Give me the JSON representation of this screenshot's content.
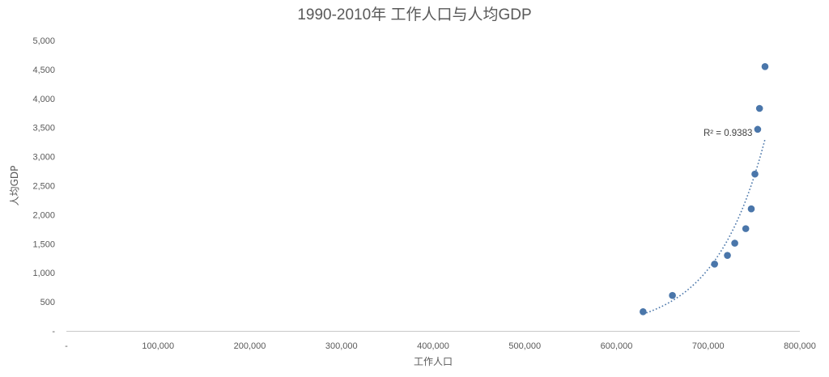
{
  "chart_data": {
    "type": "scatter",
    "title": "1990-2010年 工作人口与人均GDP",
    "xlabel": "工作人口",
    "ylabel": "人均GDP",
    "xlim": [
      0,
      800000
    ],
    "ylim": [
      0,
      5000
    ],
    "x_ticks": [
      0,
      100000,
      200000,
      300000,
      400000,
      500000,
      600000,
      700000,
      800000
    ],
    "x_tick_labels": [
      "-",
      "100,000",
      "200,000",
      "300,000",
      "400,000",
      "500,000",
      "600,000",
      "700,000",
      "800,000"
    ],
    "y_ticks": [
      0,
      500,
      1000,
      1500,
      2000,
      2500,
      3000,
      3500,
      4000,
      4500,
      5000
    ],
    "y_tick_labels": [
      "-",
      "500",
      "1,000",
      "1,500",
      "2,000",
      "2,500",
      "3,000",
      "3,500",
      "4,000",
      "4,500",
      "5,000"
    ],
    "grid": false,
    "legend": "none",
    "series": [
      {
        "points": [
          {
            "x": 629000,
            "y": 330
          },
          {
            "x": 661000,
            "y": 610
          },
          {
            "x": 707000,
            "y": 1150
          },
          {
            "x": 721000,
            "y": 1300
          },
          {
            "x": 729000,
            "y": 1510
          },
          {
            "x": 741000,
            "y": 1760
          },
          {
            "x": 747000,
            "y": 2100
          },
          {
            "x": 751000,
            "y": 2700
          },
          {
            "x": 754000,
            "y": 3470
          },
          {
            "x": 756000,
            "y": 3830
          },
          {
            "x": 762000,
            "y": 4550
          }
        ]
      }
    ],
    "trendline": {
      "type": "exponential",
      "r2_label": "R² = 0.9383",
      "x_start": 629000,
      "x_end": 762000,
      "y_start": 290,
      "y_end": 3300
    },
    "colors": {
      "marker": "#4a76aa",
      "trendline": "#4a76aa",
      "axis": "#c8c8c8",
      "text": "#595959"
    }
  }
}
